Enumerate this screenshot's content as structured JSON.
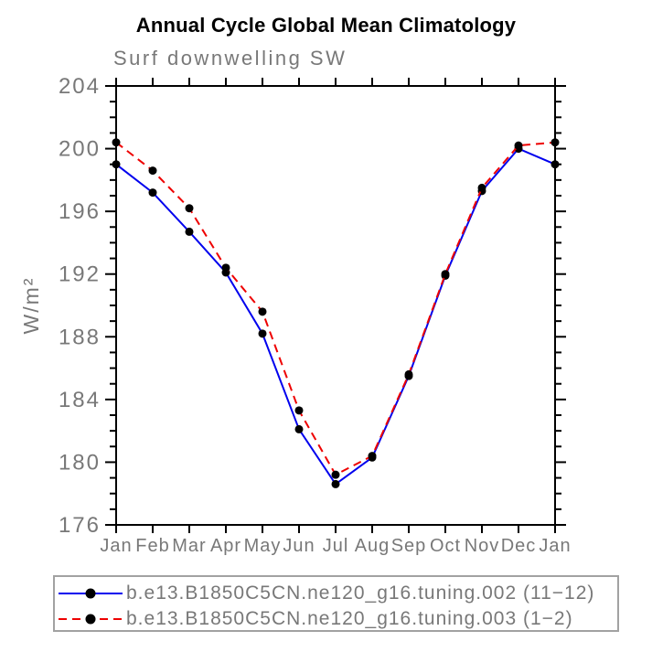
{
  "title": "Annual Cycle Global Mean Climatology",
  "subtitle": "Surf downwelling SW",
  "colors": {
    "title_text": "#000000",
    "axis_text": "#787878",
    "axis_line": "#000000",
    "marker": "#000000",
    "legend_border": "#a2a2a2",
    "series_blue": "#0000ee",
    "series_red": "#ee0000"
  },
  "chart_data": {
    "type": "line",
    "title": "Annual Cycle Global Mean Climatology",
    "subtitle": "Surf downwelling SW",
    "xlabel": "",
    "ylabel": "W/m²",
    "ylim": [
      176,
      204
    ],
    "ytick_major_step": 4,
    "ytick_minor_step": 1,
    "grid": false,
    "legend_position": "bottom",
    "categories": [
      "Jan",
      "Feb",
      "Mar",
      "Apr",
      "May",
      "Jun",
      "Jul",
      "Aug",
      "Sep",
      "Oct",
      "Nov",
      "Dec",
      "Jan"
    ],
    "series": [
      {
        "label": "b.e13.B1850C5CN.ne120_g16.tuning.002 (11−12)",
        "color": "#0000ee",
        "line_style": "solid",
        "marker": "circle",
        "marker_color": "#000000",
        "values": [
          199.0,
          197.2,
          194.7,
          192.1,
          188.2,
          182.1,
          178.6,
          180.3,
          185.5,
          191.9,
          197.3,
          200.0,
          199.0
        ]
      },
      {
        "label": "b.e13.B1850C5CN.ne120_g16.tuning.003 (1−2)",
        "color": "#ee0000",
        "line_style": "dashed",
        "marker": "circle",
        "marker_color": "#000000",
        "values": [
          200.4,
          198.6,
          196.2,
          192.4,
          189.6,
          183.3,
          179.2,
          180.4,
          185.6,
          192.0,
          197.5,
          200.2,
          200.4
        ]
      }
    ]
  }
}
